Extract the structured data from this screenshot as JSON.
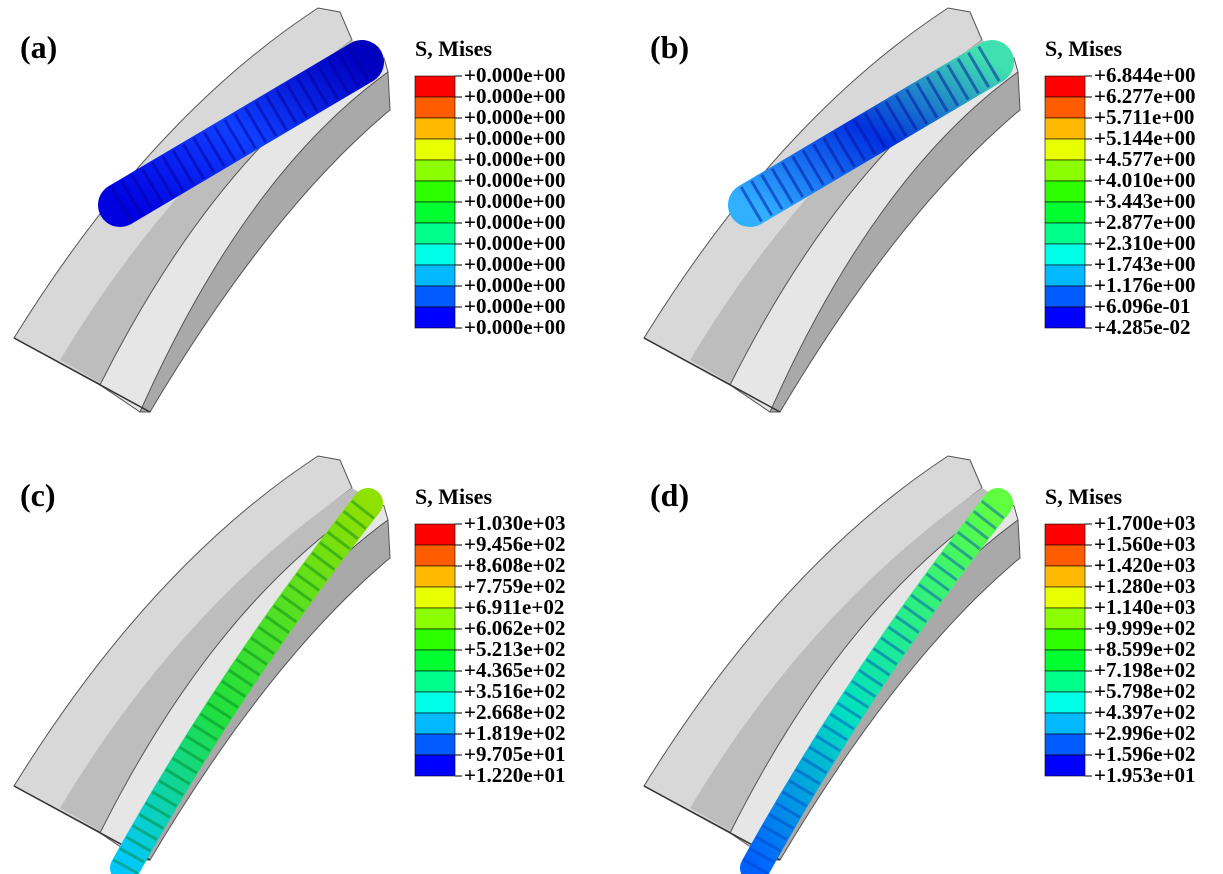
{
  "panels": [
    {
      "label": "(a)",
      "legend_title": "S, Mises",
      "legend_labels": [
        "+0.000e+00",
        "+0.000e+00",
        "+0.000e+00",
        "+0.000e+00",
        "+0.000e+00",
        "+0.000e+00",
        "+0.000e+00",
        "+0.000e+00",
        "+0.000e+00",
        "+0.000e+00",
        "+0.000e+00",
        "+0.000e+00",
        "+0.000e+00"
      ]
    },
    {
      "label": "(b)",
      "legend_title": "S, Mises",
      "legend_labels": [
        "+6.844e+00",
        "+6.277e+00",
        "+5.711e+00",
        "+5.144e+00",
        "+4.577e+00",
        "+4.010e+00",
        "+3.443e+00",
        "+2.877e+00",
        "+2.310e+00",
        "+1.743e+00",
        "+1.176e+00",
        "+6.096e-01",
        "+4.285e-02"
      ]
    },
    {
      "label": "(c)",
      "legend_title": "S, Mises",
      "legend_labels": [
        "+1.030e+03",
        "+9.456e+02",
        "+8.608e+02",
        "+7.759e+02",
        "+6.911e+02",
        "+6.062e+02",
        "+5.213e+02",
        "+4.365e+02",
        "+3.516e+02",
        "+2.668e+02",
        "+1.819e+02",
        "+9.705e+01",
        "+1.220e+01"
      ]
    },
    {
      "label": "(d)",
      "legend_title": "S, Mises",
      "legend_labels": [
        "+1.700e+03",
        "+1.560e+03",
        "+1.420e+03",
        "+1.280e+03",
        "+1.140e+03",
        "+9.999e+02",
        "+8.599e+02",
        "+7.198e+02",
        "+5.798e+02",
        "+4.397e+02",
        "+2.996e+02",
        "+1.596e+02",
        "+1.953e+01"
      ]
    }
  ]
}
